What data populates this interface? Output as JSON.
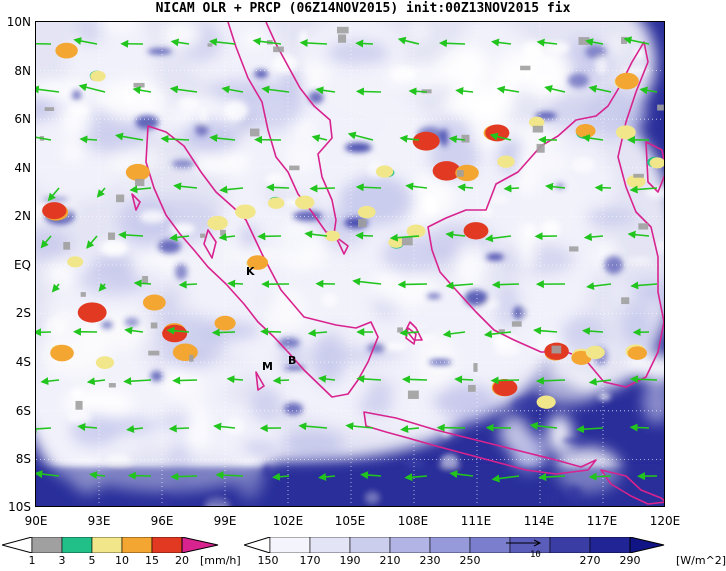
{
  "title": "NICAM OLR + PRCP (06Z14NOV2015) init:00Z13NOV2015 fix",
  "map": {
    "lat_labels": [
      "10N",
      "8N",
      "6N",
      "4N",
      "2N",
      "EQ",
      "2S",
      "4S",
      "6S",
      "8S",
      "10S"
    ],
    "lon_labels": [
      "90E",
      "93E",
      "96E",
      "99E",
      "102E",
      "105E",
      "108E",
      "111E",
      "114E",
      "117E",
      "120E"
    ],
    "station_labels": [
      "K",
      "M",
      "B"
    ]
  },
  "legends": {
    "precip": {
      "labels": [
        "1",
        "3",
        "5",
        "10",
        "15",
        "20"
      ],
      "unit": "[mm/h]",
      "colors": [
        "#a0a0a0",
        "#22c089",
        "#f2e68a",
        "#f3a632",
        "#e23a22",
        "#d8238e"
      ]
    },
    "olr": {
      "labels": [
        "150",
        "170",
        "190",
        "210",
        "230",
        "250",
        "270",
        "290"
      ],
      "unit": "[W/m^2]",
      "colors": [
        "#f4f4fc",
        "#e3e4f5",
        "#ccceee",
        "#b2b4e5",
        "#9699da",
        "#7b7ecd",
        "#5a5dba",
        "#393da4",
        "#202495",
        "#101484"
      ]
    },
    "vector_ref": "10"
  },
  "colors": {
    "cloud_base": "#2a2e9a",
    "coast": "#d8238e",
    "wind": "#22c51e"
  }
}
